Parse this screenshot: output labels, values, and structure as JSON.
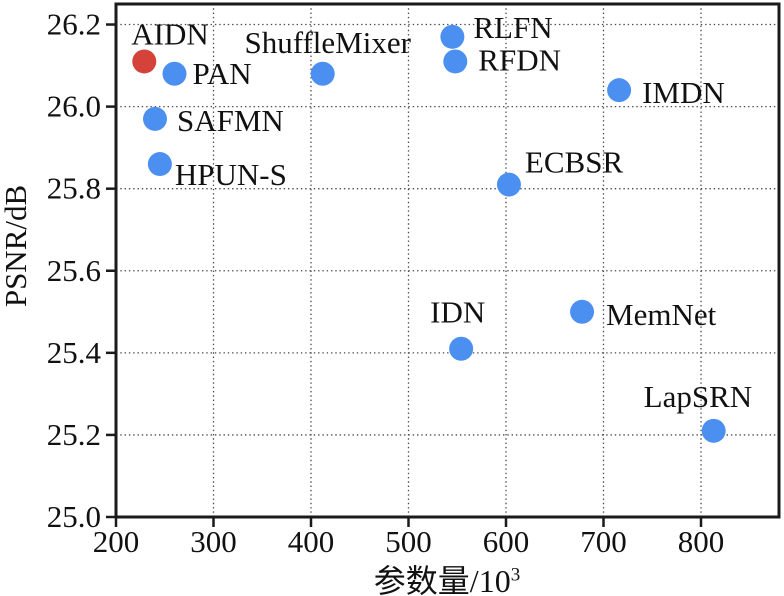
{
  "figure": {
    "background": "#ffffff"
  },
  "chart_data": {
    "type": "scatter",
    "title": "",
    "xlabel": {
      "text": "参数量/10",
      "superscript": "3"
    },
    "ylabel": "PSNR/dB",
    "xlim": [
      200,
      880
    ],
    "ylim": [
      25.0,
      26.25
    ],
    "xticks": [
      200,
      300,
      400,
      500,
      600,
      700,
      800
    ],
    "yticks": [
      25.0,
      25.2,
      25.4,
      25.6,
      25.8,
      26.0,
      26.2
    ],
    "grid": true,
    "grid_style": "dotted",
    "legend": false,
    "marker_radius": 12,
    "colors": {
      "highlight": "#d4423a",
      "default": "#4b90f0",
      "axis": "#1a1a1a",
      "grid": "#4a4a4a",
      "text": "#111111"
    },
    "points": [
      {
        "name": "AIDN",
        "x": 229,
        "y": 26.11,
        "color": "highlight",
        "label_anchor": "start",
        "label_offset": [
          -13,
          -17
        ]
      },
      {
        "name": "PAN",
        "x": 260,
        "y": 26.08,
        "color": "default",
        "label_anchor": "start",
        "label_offset": [
          18,
          10
        ]
      },
      {
        "name": "SAFMN",
        "x": 240,
        "y": 25.97,
        "color": "default",
        "label_anchor": "start",
        "label_offset": [
          22,
          12
        ]
      },
      {
        "name": "HPUN-S",
        "x": 245,
        "y": 25.86,
        "color": "default",
        "label_anchor": "start",
        "label_offset": [
          15,
          21
        ]
      },
      {
        "name": "ShuffleMixer",
        "x": 412,
        "y": 26.08,
        "color": "default",
        "label_anchor": "middle",
        "label_offset": [
          5,
          -21
        ]
      },
      {
        "name": "RLFN",
        "x": 545,
        "y": 26.17,
        "color": "default",
        "label_anchor": "start",
        "label_offset": [
          21,
          1
        ]
      },
      {
        "name": "RFDN",
        "x": 548,
        "y": 26.11,
        "color": "default",
        "label_anchor": "start",
        "label_offset": [
          23,
          9
        ]
      },
      {
        "name": "ECBSR",
        "x": 603,
        "y": 25.81,
        "color": "default",
        "label_anchor": "start",
        "label_offset": [
          16,
          -12
        ]
      },
      {
        "name": "IMDN",
        "x": 716,
        "y": 26.04,
        "color": "default",
        "label_anchor": "start",
        "label_offset": [
          23,
          13
        ]
      },
      {
        "name": "IDN",
        "x": 554,
        "y": 25.41,
        "color": "default",
        "label_anchor": "start",
        "label_offset": [
          -31,
          -26
        ]
      },
      {
        "name": "MemNet",
        "x": 678,
        "y": 25.5,
        "color": "default",
        "label_anchor": "start",
        "label_offset": [
          24,
          13
        ]
      },
      {
        "name": "LapSRN",
        "x": 813,
        "y": 25.21,
        "color": "default",
        "label_anchor": "start",
        "label_offset": [
          -70,
          -24
        ]
      }
    ]
  }
}
